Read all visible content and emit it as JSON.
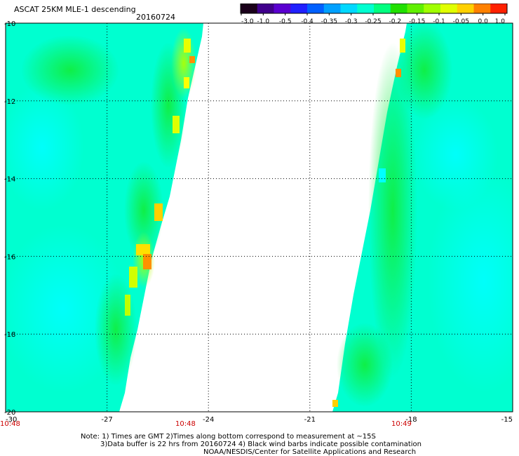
{
  "header": {
    "title": "ASCAT 25KM MLE-1 descending",
    "date": "20160724"
  },
  "colorbar": {
    "labels": [
      "-3.0",
      "-1.0",
      "-0.5",
      "-0.4",
      "-0.35",
      "-0.3",
      "-0.25",
      "-0.2",
      "-0.15",
      "-0.1",
      "-0.05",
      "0.0",
      "1.0"
    ],
    "colors": [
      "#1a001a",
      "#40008c",
      "#5a00d0",
      "#2020ff",
      "#0060ff",
      "#00a0ff",
      "#00d8ff",
      "#00ffd0",
      "#00ff80",
      "#20e000",
      "#60f000",
      "#a0ff00",
      "#e0ff00",
      "#ffd000",
      "#ff8000",
      "#ff2000"
    ]
  },
  "map": {
    "lon_range": [
      -30,
      -15
    ],
    "lat_range": [
      -20,
      -10
    ],
    "x_ticks": [
      "-30",
      "-27",
      "-24",
      "-21",
      "-18",
      "-15"
    ],
    "y_ticks": [
      "-10",
      "-12",
      "-14",
      "-16",
      "-18",
      "-20"
    ],
    "grid_dotted": true,
    "swath_colors": {
      "base": "#00ffd0",
      "cyan": "#00ffff",
      "green": "#00ff60",
      "bright_green": "#20e020",
      "yellow_green": "#a0ff00",
      "yellow": "#ffff00",
      "orange": "#ff9000"
    }
  },
  "times": {
    "left": "10:48",
    "middle": "10:48",
    "right": "10:49"
  },
  "notes": {
    "line1": "Note: 1) Times are GMT 2)Times along bottom correspond to measurement at ~15S",
    "line2": "3)Data buffer is 22 hrs from 20160724 4) Black wind barbs indicate possible contamination",
    "line3": "NOAA/NESDIS/Center for Satellite Applications and Research"
  }
}
